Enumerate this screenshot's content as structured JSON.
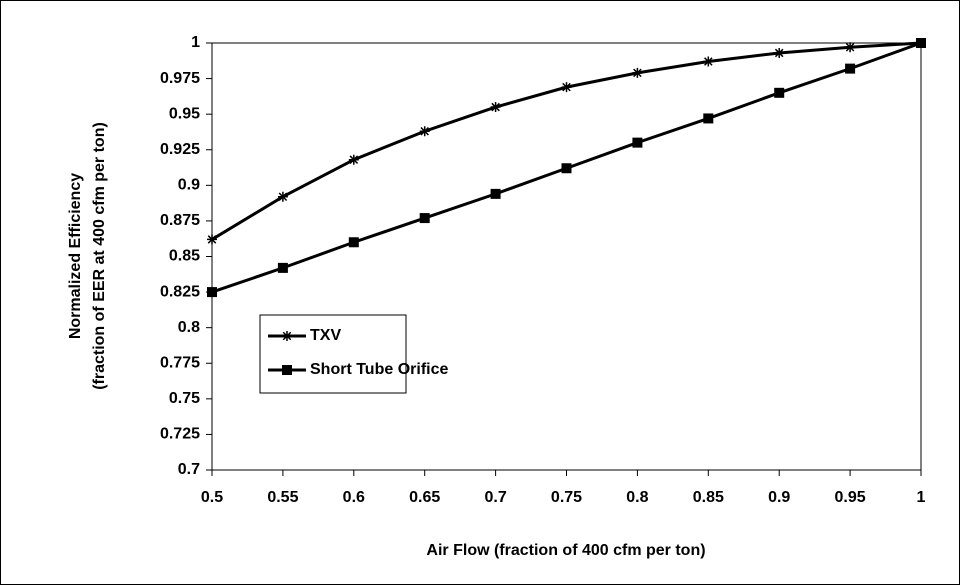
{
  "chart_data": {
    "type": "line",
    "xlabel": "Air Flow (fraction of 400 cfm per ton)",
    "ylabel": [
      "Normalized Efficiency",
      "(fraction of EER at 400 cfm per ton)"
    ],
    "x": [
      0.5,
      0.55,
      0.6,
      0.65,
      0.7,
      0.75,
      0.8,
      0.85,
      0.9,
      0.95,
      1
    ],
    "series": [
      {
        "name": "TXV",
        "color": "#000000",
        "marker": "star",
        "values": [
          0.862,
          0.892,
          0.918,
          0.938,
          0.955,
          0.969,
          0.979,
          0.987,
          0.993,
          0.997,
          1
        ]
      },
      {
        "name": "Short Tube Orifice",
        "color": "#000000",
        "marker": "square",
        "values": [
          0.825,
          0.842,
          0.86,
          0.877,
          0.894,
          0.912,
          0.93,
          0.947,
          0.965,
          0.982,
          1
        ]
      }
    ],
    "xlim": [
      0.5,
      1
    ],
    "xticks": [
      0.5,
      0.55,
      0.6,
      0.65,
      0.7,
      0.75,
      0.8,
      0.85,
      0.9,
      0.95,
      1
    ],
    "ylim": [
      0.7,
      1
    ],
    "yticks": [
      0.7,
      0.725,
      0.75,
      0.775,
      0.8,
      0.825,
      0.85,
      0.875,
      0.9,
      0.925,
      0.95,
      0.975,
      1
    ],
    "grid": false,
    "legend": "inside-lower-left"
  }
}
